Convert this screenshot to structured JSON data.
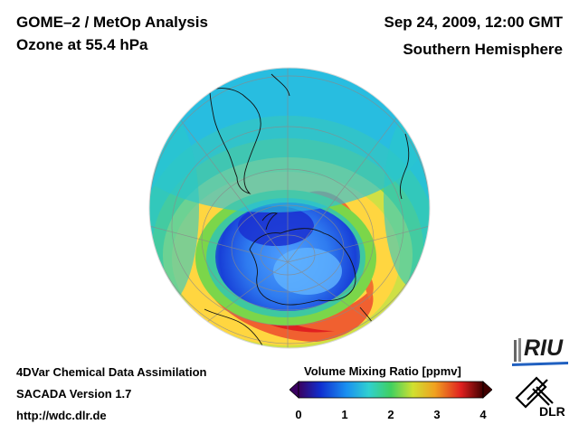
{
  "header": {
    "instrument": "GOME–2 / MetOp Analysis",
    "quantity": "Ozone at 55.4 hPa",
    "datetime": "Sep 24, 2009, 12:00 GMT",
    "region": "Southern Hemisphere"
  },
  "footer": {
    "method": "4DVar Chemical Data Assimilation",
    "version": "SACADA Version 1.7",
    "url": "http://wdc.dlr.de"
  },
  "colorbar": {
    "title": "Volume Mixing Ratio [ppmv]",
    "min": 0,
    "max": 4,
    "ticks": [
      "0",
      "1",
      "2",
      "3",
      "4"
    ],
    "colors": [
      "#3a0060",
      "#1030d0",
      "#1a90f0",
      "#30d0d0",
      "#40d060",
      "#d0e030",
      "#f0a020",
      "#e02020",
      "#400000"
    ]
  },
  "logos": {
    "riu": "RIU",
    "dlr": "DLR"
  }
}
